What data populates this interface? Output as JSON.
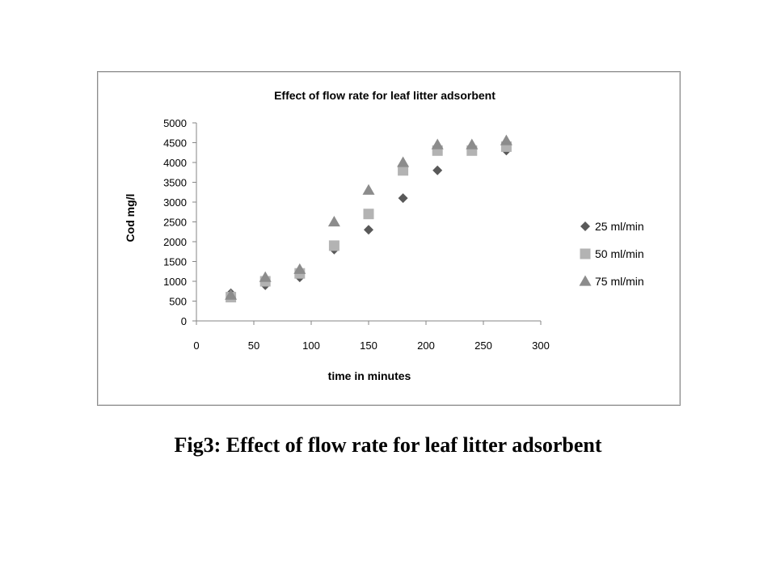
{
  "chart_data": {
    "type": "scatter",
    "title": "Effect of flow rate for leaf litter adsorbent",
    "xlabel": "time in minutes",
    "ylabel": "Cod mg/l",
    "xlim": [
      0,
      300
    ],
    "ylim": [
      0,
      5000
    ],
    "xticks": [
      "0",
      "50",
      "100",
      "150",
      "200",
      "250",
      "300"
    ],
    "yticks": [
      "0",
      "500",
      "1000",
      "1500",
      "2000",
      "2500",
      "3000",
      "3500",
      "4000",
      "4500",
      "5000"
    ],
    "grid": false,
    "legend_position": "right",
    "series": [
      {
        "name": "25 ml/min",
        "marker": "diamond",
        "color": "#595959",
        "points": [
          [
            30,
            700
          ],
          [
            60,
            900
          ],
          [
            90,
            1100
          ],
          [
            120,
            1800
          ],
          [
            150,
            2300
          ],
          [
            180,
            3100
          ],
          [
            210,
            3800
          ],
          [
            240,
            4300
          ],
          [
            270,
            4300
          ]
        ]
      },
      {
        "name": "50 ml/min",
        "marker": "square",
        "color": "#b3b3b3",
        "points": [
          [
            30,
            600
          ],
          [
            60,
            1000
          ],
          [
            90,
            1200
          ],
          [
            120,
            1900
          ],
          [
            150,
            2700
          ],
          [
            180,
            3800
          ],
          [
            210,
            4300
          ],
          [
            240,
            4300
          ],
          [
            270,
            4400
          ]
        ]
      },
      {
        "name": "75 ml/min",
        "marker": "triangle",
        "color": "#8c8c8c",
        "points": [
          [
            30,
            650
          ],
          [
            60,
            1100
          ],
          [
            90,
            1300
          ],
          [
            120,
            2500
          ],
          [
            150,
            3300
          ],
          [
            180,
            4000
          ],
          [
            210,
            4450
          ],
          [
            240,
            4450
          ],
          [
            270,
            4550
          ]
        ]
      }
    ]
  },
  "caption": "Fig3: Effect of flow rate for leaf litter adsorbent"
}
